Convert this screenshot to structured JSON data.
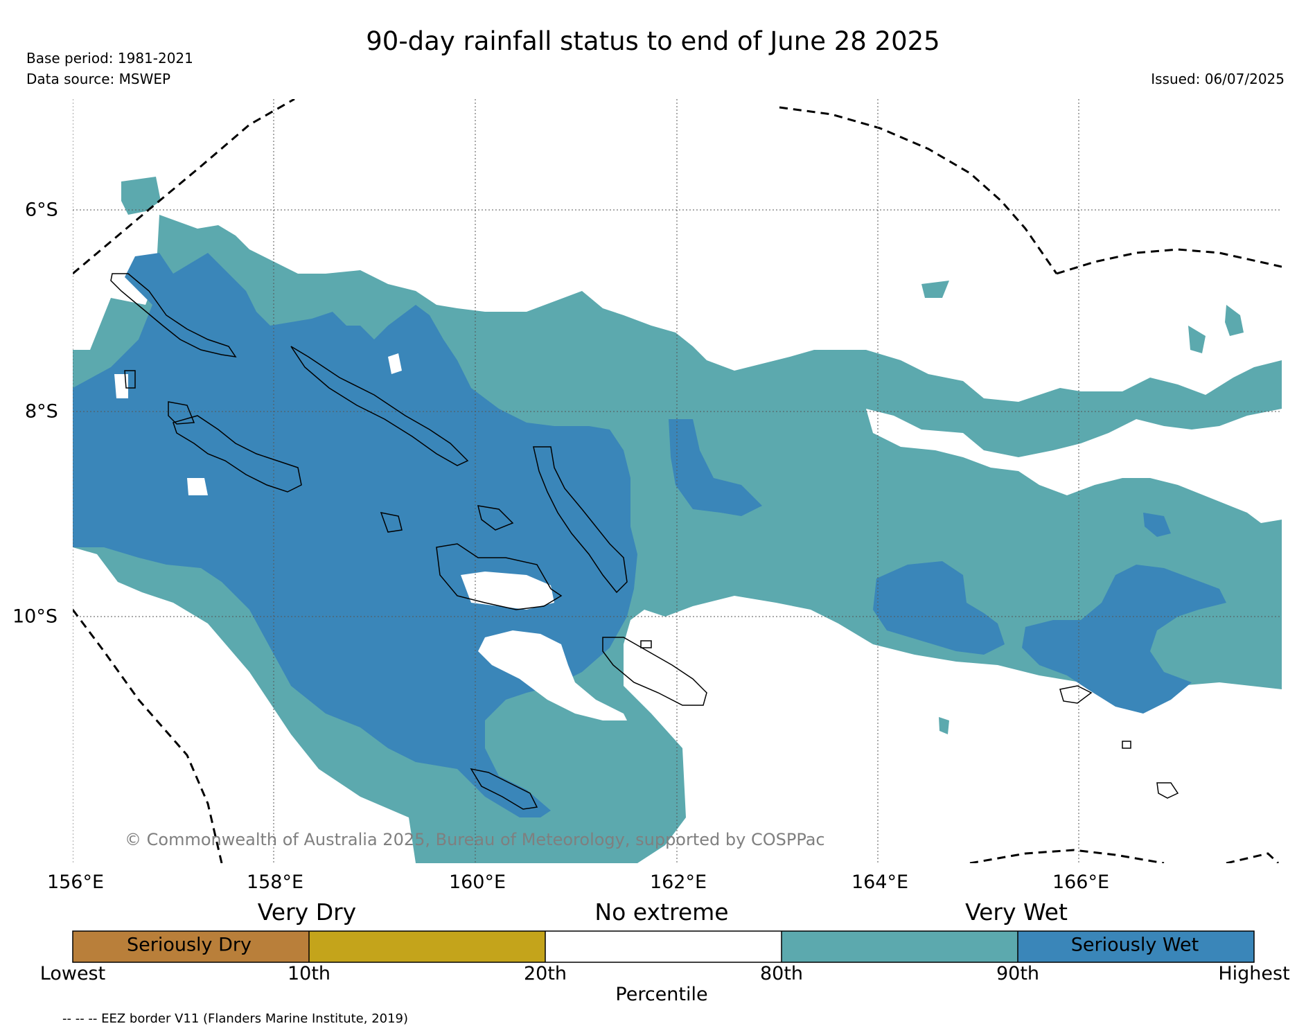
{
  "title": "90-day rainfall status to end of June 28 2025",
  "base_period": "Base period: 1981-2021",
  "data_source": "Data source: MSWEP",
  "issued": "Issued: 06/07/2025",
  "copyright": "© Commonwealth of Australia 2025, Bureau of Meteorology, supported by COSPPac",
  "longitude_labels": [
    "156°E",
    "158°E",
    "160°E",
    "162°E",
    "164°E",
    "166°E"
  ],
  "latitude_labels": [
    "6°S",
    "8°S",
    "10°S"
  ],
  "legend": {
    "category_labels": [
      "Very Dry",
      "No extreme",
      "Very Wet"
    ],
    "segment_labels": [
      "Seriously Dry",
      "Seriously Wet"
    ],
    "tick_labels": [
      "Lowest",
      "10th",
      "20th",
      "80th",
      "90th",
      "Highest"
    ],
    "axis_label": "Percentile",
    "colors": {
      "seriously_dry": "#b97f3a",
      "very_dry": "#c4a41b",
      "no_extreme": "#ffffff",
      "very_wet": "#5ca9ae",
      "seriously_wet": "#3a86b9"
    }
  },
  "eez_note": "-- -- -- EEZ border V11 (Flanders Marine Institute, 2019)"
}
